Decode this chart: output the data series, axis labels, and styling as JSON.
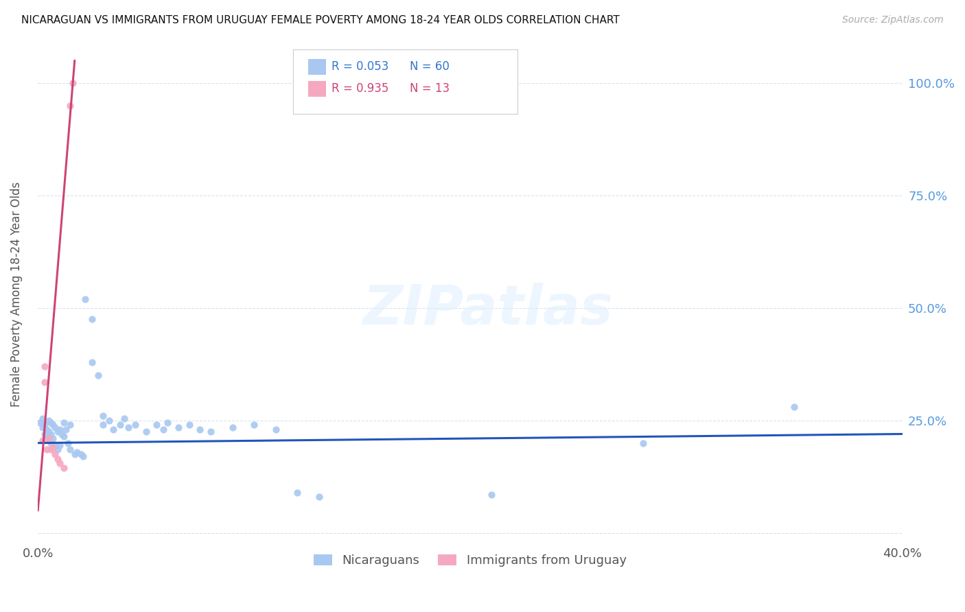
{
  "title": "NICARAGUAN VS IMMIGRANTS FROM URUGUAY FEMALE POVERTY AMONG 18-24 YEAR OLDS CORRELATION CHART",
  "source": "Source: ZipAtlas.com",
  "ylabel": "Female Poverty Among 18-24 Year Olds",
  "xlim": [
    0.0,
    0.4
  ],
  "ylim": [
    -0.02,
    1.08
  ],
  "blue_color": "#a8c8f0",
  "pink_color": "#f5a8c0",
  "trendline_blue_color": "#2255bb",
  "trendline_pink_color": "#cc4477",
  "blue_scatter": [
    [
      0.001,
      0.245
    ],
    [
      0.002,
      0.255
    ],
    [
      0.002,
      0.235
    ],
    [
      0.003,
      0.24
    ],
    [
      0.003,
      0.22
    ],
    [
      0.004,
      0.23
    ],
    [
      0.004,
      0.215
    ],
    [
      0.005,
      0.25
    ],
    [
      0.005,
      0.225
    ],
    [
      0.005,
      0.205
    ],
    [
      0.006,
      0.245
    ],
    [
      0.006,
      0.22
    ],
    [
      0.006,
      0.2
    ],
    [
      0.007,
      0.24
    ],
    [
      0.007,
      0.21
    ],
    [
      0.008,
      0.235
    ],
    [
      0.008,
      0.195
    ],
    [
      0.009,
      0.225
    ],
    [
      0.009,
      0.185
    ],
    [
      0.01,
      0.23
    ],
    [
      0.01,
      0.195
    ],
    [
      0.011,
      0.22
    ],
    [
      0.012,
      0.245
    ],
    [
      0.012,
      0.215
    ],
    [
      0.013,
      0.23
    ],
    [
      0.014,
      0.2
    ],
    [
      0.015,
      0.24
    ],
    [
      0.015,
      0.185
    ],
    [
      0.017,
      0.175
    ],
    [
      0.018,
      0.18
    ],
    [
      0.02,
      0.175
    ],
    [
      0.021,
      0.17
    ],
    [
      0.022,
      0.52
    ],
    [
      0.025,
      0.38
    ],
    [
      0.028,
      0.35
    ],
    [
      0.03,
      0.26
    ],
    [
      0.03,
      0.24
    ],
    [
      0.033,
      0.25
    ],
    [
      0.035,
      0.23
    ],
    [
      0.038,
      0.24
    ],
    [
      0.04,
      0.255
    ],
    [
      0.042,
      0.235
    ],
    [
      0.045,
      0.24
    ],
    [
      0.05,
      0.225
    ],
    [
      0.055,
      0.24
    ],
    [
      0.058,
      0.23
    ],
    [
      0.06,
      0.245
    ],
    [
      0.065,
      0.235
    ],
    [
      0.07,
      0.24
    ],
    [
      0.075,
      0.23
    ],
    [
      0.08,
      0.225
    ],
    [
      0.09,
      0.235
    ],
    [
      0.1,
      0.24
    ],
    [
      0.11,
      0.23
    ],
    [
      0.025,
      0.475
    ],
    [
      0.12,
      0.09
    ],
    [
      0.13,
      0.08
    ],
    [
      0.21,
      0.085
    ],
    [
      0.28,
      0.2
    ],
    [
      0.35,
      0.28
    ]
  ],
  "pink_scatter": [
    [
      0.002,
      0.205
    ],
    [
      0.003,
      0.37
    ],
    [
      0.003,
      0.335
    ],
    [
      0.004,
      0.185
    ],
    [
      0.005,
      0.21
    ],
    [
      0.006,
      0.185
    ],
    [
      0.007,
      0.19
    ],
    [
      0.008,
      0.175
    ],
    [
      0.009,
      0.165
    ],
    [
      0.01,
      0.155
    ],
    [
      0.012,
      0.145
    ],
    [
      0.015,
      0.95
    ],
    [
      0.016,
      1.0
    ]
  ],
  "blue_trendline_x": [
    0.0,
    0.4
  ],
  "blue_trendline_y": [
    0.2,
    0.22
  ],
  "pink_trendline_x": [
    0.0,
    0.017
  ],
  "pink_trendline_y": [
    0.05,
    1.05
  ],
  "legend1_r": "R = 0.053",
  "legend1_n": "N = 60",
  "legend2_r": "R = 0.935",
  "legend2_n": "N = 13",
  "watermark": "ZIPatlas",
  "ytick_positions": [
    0.0,
    0.25,
    0.5,
    0.75,
    1.0
  ],
  "ytick_labels": [
    "",
    "25.0%",
    "50.0%",
    "75.0%",
    "100.0%"
  ],
  "xtick_positions": [
    0.0,
    0.05,
    0.1,
    0.15,
    0.2,
    0.25,
    0.3,
    0.35,
    0.4
  ],
  "xtick_labels": [
    "0.0%",
    "",
    "",
    "",
    "",
    "",
    "",
    "",
    "40.0%"
  ]
}
